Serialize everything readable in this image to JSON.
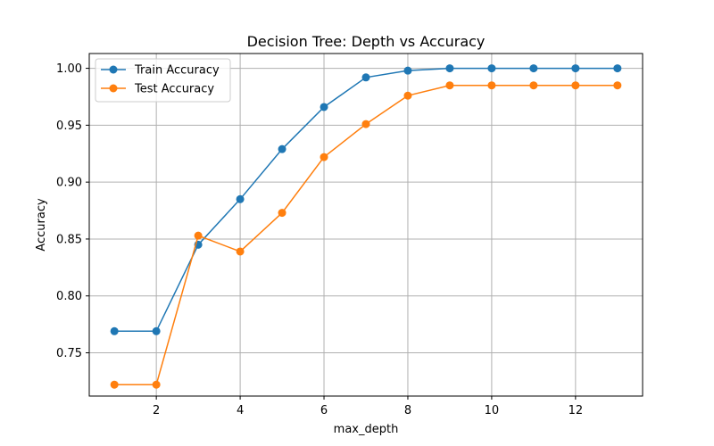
{
  "chart_data": {
    "type": "line",
    "title": "Decision Tree: Depth vs Accuracy",
    "xlabel": "max_depth",
    "ylabel": "Accuracy",
    "x": [
      1,
      2,
      3,
      4,
      5,
      6,
      7,
      8,
      9,
      10,
      11,
      12,
      13
    ],
    "xlim": [
      0.4,
      13.6
    ],
    "ylim": [
      0.712,
      1.013
    ],
    "xticks": [
      2,
      4,
      6,
      8,
      10,
      12
    ],
    "yticks": [
      0.75,
      0.8,
      0.85,
      0.9,
      0.95,
      1.0
    ],
    "ytick_labels": [
      "0.75",
      "0.80",
      "0.85",
      "0.90",
      "0.95",
      "1.00"
    ],
    "grid": true,
    "legend_position": "top-left",
    "series": [
      {
        "name": "Train Accuracy",
        "color": "#1f77b4",
        "marker": "circle",
        "values": [
          0.769,
          0.769,
          0.845,
          0.885,
          0.929,
          0.966,
          0.992,
          0.998,
          1.0,
          1.0,
          1.0,
          1.0,
          1.0
        ]
      },
      {
        "name": "Test Accuracy",
        "color": "#ff7f0e",
        "marker": "circle",
        "values": [
          0.722,
          0.722,
          0.853,
          0.839,
          0.873,
          0.922,
          0.951,
          0.976,
          0.985,
          0.985,
          0.985,
          0.985,
          0.985
        ]
      }
    ]
  }
}
